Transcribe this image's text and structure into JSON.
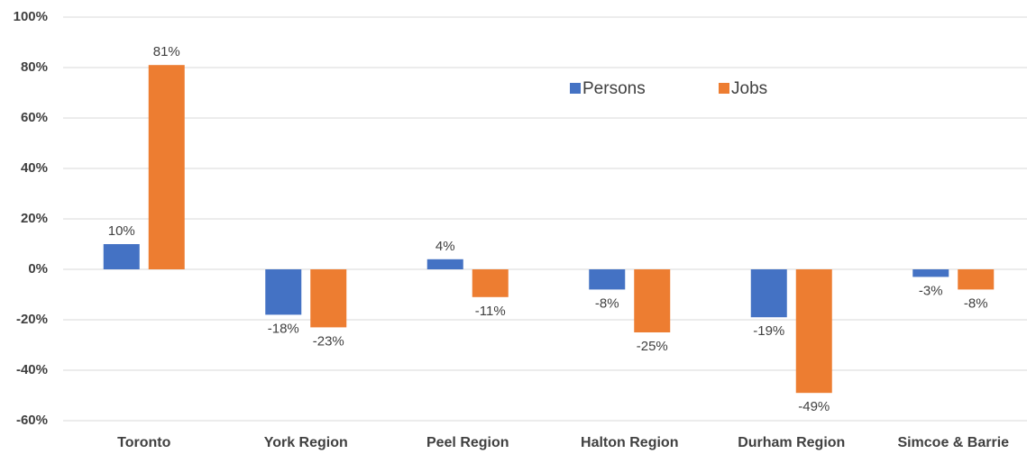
{
  "chart_data": {
    "type": "bar",
    "categories": [
      "Toronto",
      "York Region",
      "Peel Region",
      "Halton Region",
      "Durham Region",
      "Simcoe & Barrie"
    ],
    "series": [
      {
        "name": "Persons",
        "color": "#4472c4",
        "values": [
          10,
          -18,
          4,
          -8,
          -19,
          -3
        ],
        "value_labels": [
          "10%",
          "-18%",
          "4%",
          "-8%",
          "-19%",
          "-3%"
        ]
      },
      {
        "name": "Jobs",
        "color": "#ed7d31",
        "values": [
          81,
          -23,
          -11,
          -25,
          -49,
          -8
        ],
        "value_labels": [
          "81%",
          "-23%",
          "-11%",
          "-25%",
          "-49%",
          "-8%"
        ]
      }
    ],
    "ylim": [
      -60,
      100
    ],
    "yticks": [
      {
        "value": -60,
        "label": "-60%"
      },
      {
        "value": -40,
        "label": "-40%"
      },
      {
        "value": -20,
        "label": "-20%"
      },
      {
        "value": 0,
        "label": "0%"
      },
      {
        "value": 20,
        "label": "20%"
      },
      {
        "value": 40,
        "label": "40%"
      },
      {
        "value": 60,
        "label": "60%"
      },
      {
        "value": 80,
        "label": "80%"
      },
      {
        "value": 100,
        "label": "100%"
      }
    ],
    "grid": true,
    "legend": "top-right"
  }
}
